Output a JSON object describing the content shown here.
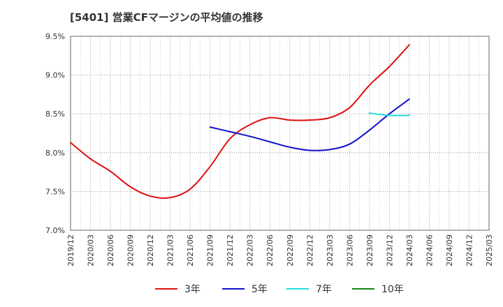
{
  "chart_data": {
    "type": "line",
    "title": "[5401]  営業CFマージンの平均値の推移",
    "xlabel": "",
    "ylabel": "",
    "ylim": [
      7.0,
      9.5
    ],
    "y_ticks": [
      "7.0%",
      "7.5%",
      "8.0%",
      "8.5%",
      "9.0%",
      "9.5%"
    ],
    "y_tick_values": [
      7.0,
      7.5,
      8.0,
      8.5,
      9.0,
      9.5
    ],
    "x_ticks": [
      "2019/12",
      "2020/03",
      "2020/06",
      "2020/09",
      "2020/12",
      "2021/03",
      "2021/06",
      "2021/09",
      "2021/12",
      "2022/03",
      "2022/06",
      "2022/09",
      "2022/12",
      "2023/03",
      "2023/06",
      "2023/09",
      "2023/12",
      "2024/03",
      "2024/06",
      "2024/09",
      "2024/12",
      "2025/03"
    ],
    "grid": true,
    "legend_position": "bottom",
    "series": [
      {
        "name": "3年",
        "color": "#dd1111",
        "points": [
          [
            "2019/12",
            8.13
          ],
          [
            "2020/03",
            7.92
          ],
          [
            "2020/06",
            7.76
          ],
          [
            "2020/09",
            7.56
          ],
          [
            "2020/12",
            7.44
          ],
          [
            "2021/03",
            7.42
          ],
          [
            "2021/06",
            7.53
          ],
          [
            "2021/09",
            7.82
          ],
          [
            "2021/12",
            8.18
          ],
          [
            "2022/03",
            8.36
          ],
          [
            "2022/06",
            8.45
          ],
          [
            "2022/09",
            8.42
          ],
          [
            "2022/12",
            8.42
          ],
          [
            "2023/03",
            8.45
          ],
          [
            "2023/06",
            8.58
          ],
          [
            "2023/09",
            8.87
          ],
          [
            "2023/12",
            9.11
          ],
          [
            "2024/03",
            9.39
          ]
        ]
      },
      {
        "name": "5年",
        "color": "#1111cc",
        "points": [
          [
            "2021/09",
            8.33
          ],
          [
            "2021/12",
            8.27
          ],
          [
            "2022/03",
            8.21
          ],
          [
            "2022/06",
            8.14
          ],
          [
            "2022/09",
            8.07
          ],
          [
            "2022/12",
            8.03
          ],
          [
            "2023/03",
            8.04
          ],
          [
            "2023/06",
            8.11
          ],
          [
            "2023/09",
            8.29
          ],
          [
            "2023/12",
            8.5
          ],
          [
            "2024/03",
            8.69
          ]
        ]
      },
      {
        "name": "7年",
        "color": "#22dddd",
        "points": [
          [
            "2023/09",
            8.51
          ],
          [
            "2023/12",
            8.48
          ],
          [
            "2024/03",
            8.48
          ]
        ]
      },
      {
        "name": "10年",
        "color": "#118811",
        "points": []
      }
    ]
  }
}
